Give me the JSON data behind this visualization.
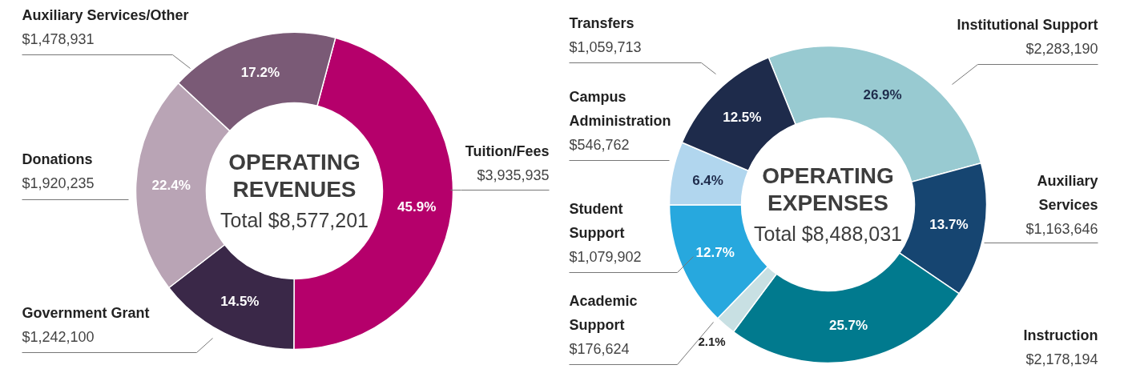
{
  "chart_data": [
    {
      "type": "donut",
      "title": "OPERATING REVENUES",
      "subtitle": "Total $8,577,201",
      "categories": [
        "Tuition/Fees",
        "Government Grant",
        "Donations",
        "Auxiliary Services/Other"
      ],
      "values": [
        3935935,
        1242100,
        1920235,
        1478931
      ],
      "colors": [
        "#b5006b",
        "#3a2848",
        "#b9a4b5",
        "#7a5a76"
      ],
      "value_labels": [
        "$3,935,935",
        "$1,242,100",
        "$1,920,235",
        "$1,478,931"
      ],
      "annotations": [
        {
          "text": "45.9%",
          "x": "Tuition/Fees"
        },
        {
          "text": "14.5%",
          "x": "Government Grant"
        },
        {
          "text": "22.4%",
          "x": "Donations"
        },
        {
          "text": "17.2%",
          "x": "Auxiliary Services/Other"
        }
      ]
    },
    {
      "type": "donut",
      "title": "OPERATING EXPENSES",
      "subtitle": "Total $8,488,031",
      "categories": [
        "Institutional Support",
        "Auxiliary Services",
        "Instruction",
        "Academic Support",
        "Student Support",
        "Campus Administration",
        "Transfers"
      ],
      "values": [
        2283190,
        1163646,
        2178194,
        176624,
        1079902,
        546762,
        1059713
      ],
      "colors": [
        "#98cad1",
        "#164571",
        "#017a8e",
        "#c8e0e3",
        "#27a8de",
        "#b1d6ee",
        "#1e2b4b"
      ],
      "value_labels": [
        "$2,283,190",
        "$1,163,646",
        "$2,178,194",
        "$176,624",
        "$1,079,902",
        "$546,762",
        "$1,059,713"
      ],
      "annotations": [
        {
          "text": "26.9%",
          "x": "Institutional Support"
        },
        {
          "text": "13.7%",
          "x": "Auxiliary Services"
        },
        {
          "text": "25.7%",
          "x": "Instruction"
        },
        {
          "text": "2.1%",
          "x": "Academic Support"
        },
        {
          "text": "12.7%",
          "x": "Student Support"
        },
        {
          "text": "6.4%",
          "x": "Campus Administration"
        },
        {
          "text": "12.5%",
          "x": "Transfers"
        }
      ]
    }
  ]
}
